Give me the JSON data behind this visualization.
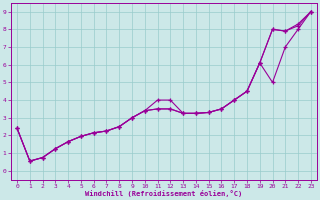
{
  "xlabel": "Windchill (Refroidissement éolien,°C)",
  "background_color": "#cce8e8",
  "grid_color": "#99cccc",
  "line_color": "#990099",
  "xlim": [
    -0.5,
    23.5
  ],
  "ylim": [
    -0.5,
    9.5
  ],
  "xticks": [
    0,
    1,
    2,
    3,
    4,
    5,
    6,
    7,
    8,
    9,
    10,
    11,
    12,
    13,
    14,
    15,
    16,
    17,
    18,
    19,
    20,
    21,
    22,
    23
  ],
  "yticks": [
    0,
    1,
    2,
    3,
    4,
    5,
    6,
    7,
    8,
    9
  ],
  "line1_x": [
    0,
    1,
    2,
    3,
    4,
    5,
    6,
    7,
    8,
    9,
    10,
    11,
    12,
    13,
    14,
    15,
    16,
    17,
    18,
    19,
    20,
    21,
    22,
    23
  ],
  "line1_y": [
    2.4,
    0.55,
    0.75,
    1.25,
    1.65,
    1.95,
    2.15,
    2.25,
    2.5,
    3.0,
    3.4,
    3.5,
    3.5,
    3.25,
    3.25,
    3.3,
    3.5,
    4.0,
    4.5,
    6.1,
    8.0,
    7.9,
    8.2,
    9.0
  ],
  "line2_x": [
    0,
    1,
    2,
    3,
    4,
    5,
    6,
    7,
    8,
    9,
    10,
    11,
    12,
    13,
    14,
    15,
    16,
    17,
    18,
    19,
    20,
    21,
    22,
    23
  ],
  "line2_y": [
    2.4,
    0.55,
    0.75,
    1.25,
    1.65,
    1.95,
    2.15,
    2.25,
    2.5,
    3.0,
    3.4,
    4.0,
    4.0,
    3.25,
    3.25,
    3.3,
    3.5,
    4.0,
    4.5,
    6.1,
    5.0,
    7.0,
    8.0,
    9.0
  ],
  "line3_x": [
    0,
    1,
    2,
    3,
    4,
    5,
    6,
    7,
    8,
    9,
    10,
    11,
    12,
    13,
    14,
    15,
    16,
    17,
    18,
    19,
    20,
    21,
    22,
    23
  ],
  "line3_y": [
    2.4,
    0.55,
    0.75,
    1.25,
    1.65,
    1.95,
    2.15,
    2.25,
    2.5,
    3.0,
    3.4,
    3.5,
    3.5,
    3.25,
    3.25,
    3.3,
    3.5,
    4.0,
    4.5,
    6.1,
    8.0,
    7.9,
    8.3,
    9.0
  ]
}
